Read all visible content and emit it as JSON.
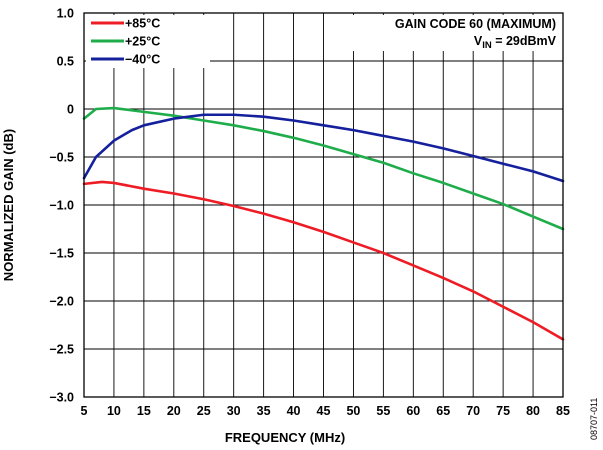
{
  "chart_data": {
    "type": "line",
    "xlabel": "FREQUENCY (MHz)",
    "ylabel": "NORMALIZED GAIN (dB)",
    "xlim": [
      5,
      85
    ],
    "ylim": [
      -3.0,
      1.0
    ],
    "x_ticks": [
      "5",
      "10",
      "15",
      "20",
      "25",
      "30",
      "35",
      "40",
      "45",
      "50",
      "55",
      "60",
      "65",
      "70",
      "75",
      "80",
      "85"
    ],
    "y_ticks": [
      "1.0",
      "0.5",
      "0",
      "−0.5",
      "−1.0",
      "−1.5",
      "−2.0",
      "−2.5",
      "−3.0"
    ],
    "grid": true,
    "legend_position": "top-left",
    "annotation": {
      "line1": "GAIN CODE 60 (MAXIMUM)",
      "line2_prefix": "V",
      "line2_subscript": "IN",
      "line2_suffix": " = 29dBmV"
    },
    "figure_id": "08707-011",
    "series": [
      {
        "name": "+85°C",
        "color": "#ee1c24",
        "x": [
          5,
          8,
          10,
          15,
          20,
          25,
          30,
          35,
          40,
          45,
          50,
          55,
          60,
          65,
          70,
          75,
          80,
          85
        ],
        "y": [
          -0.78,
          -0.76,
          -0.77,
          -0.83,
          -0.88,
          -0.94,
          -1.01,
          -1.09,
          -1.18,
          -1.28,
          -1.39,
          -1.5,
          -1.63,
          -1.76,
          -1.9,
          -2.06,
          -2.22,
          -2.4
        ]
      },
      {
        "name": "+25°C",
        "color": "#1fad4b",
        "x": [
          5,
          7,
          10,
          15,
          20,
          25,
          30,
          35,
          40,
          45,
          50,
          55,
          60,
          65,
          70,
          75,
          80,
          85
        ],
        "y": [
          -0.1,
          0.0,
          0.01,
          -0.03,
          -0.07,
          -0.12,
          -0.17,
          -0.23,
          -0.3,
          -0.38,
          -0.47,
          -0.56,
          -0.67,
          -0.77,
          -0.88,
          -0.99,
          -1.12,
          -1.25
        ]
      },
      {
        "name": "−40°C",
        "color": "#14209c",
        "x": [
          5,
          7,
          10,
          13,
          15,
          20,
          25,
          30,
          35,
          40,
          45,
          50,
          55,
          60,
          65,
          70,
          75,
          80,
          85
        ],
        "y": [
          -0.72,
          -0.5,
          -0.33,
          -0.22,
          -0.17,
          -0.1,
          -0.06,
          -0.06,
          -0.08,
          -0.12,
          -0.17,
          -0.22,
          -0.28,
          -0.34,
          -0.41,
          -0.49,
          -0.57,
          -0.65,
          -0.75
        ]
      }
    ]
  }
}
